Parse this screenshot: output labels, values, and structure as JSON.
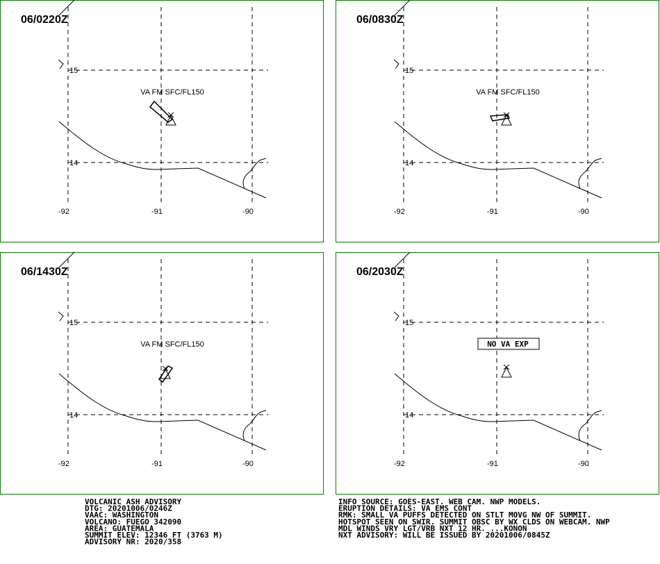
{
  "panels": [
    {
      "time": "06/0220Z",
      "label": "VA FM SFC/FL150"
    },
    {
      "time": "06/0830Z",
      "label": "VA FM SFC/FL150"
    },
    {
      "time": "06/1430Z",
      "label": "VA FM SFC/FL150"
    },
    {
      "time": "06/2030Z",
      "label": "NO VA EXP"
    }
  ],
  "grid": {
    "lat_labels": [
      "15",
      "14"
    ],
    "lon_labels": [
      "-92",
      "-91",
      "-90"
    ]
  },
  "advisory_left": [
    "VOLCANIC ASH ADVISORY",
    "DTG: 20201006/0246Z",
    "VAAC: WASHINGTON",
    "VOLCANO: FUEGO 342090",
    "AREA: GUATEMALA",
    "SUMMIT ELEV: 12346 FT (3763 M)",
    "ADVISORY NR: 2020/358"
  ],
  "advisory_right": [
    "INFO SOURCE: GOES-EAST. WEB CAM. NWP MODELS.",
    "ERUPTION DETAILS: VA EMS CONT",
    "RMK: SMALL VA PUFFS DETECTED ON STLT MOVG NW OF SUMMIT.",
    "HOTSPOT SEEN ON SWIR. SUMMIT OBSC BY WX CLDS ON WEBCAM. NWP",
    "MDL WINDS VRY LGT/VRB NXT 12 HR. ...KONON",
    "NXT ADVISORY: WILL BE ISSUED BY 20201006/0845Z"
  ]
}
